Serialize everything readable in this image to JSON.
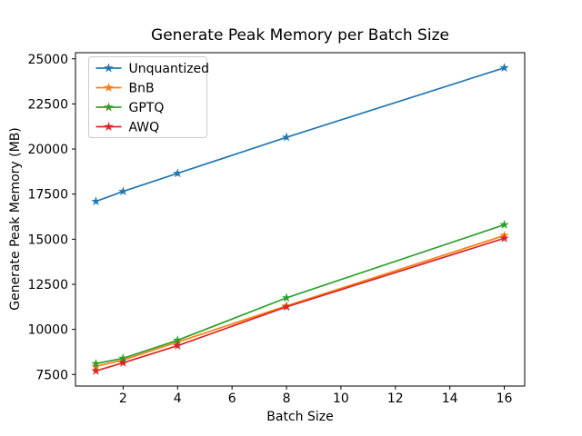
{
  "chart_data": {
    "type": "line",
    "title": "Generate Peak Memory per Batch Size",
    "xlabel": "Batch Size",
    "ylabel": "Generate Peak Memory (MB)",
    "x": [
      1,
      2,
      4,
      8,
      16
    ],
    "series": [
      {
        "name": "Unquantized",
        "color": "#1f77b4",
        "values": [
          17100,
          17650,
          18650,
          20650,
          24500
        ]
      },
      {
        "name": "BnB",
        "color": "#ff7f0e",
        "values": [
          7950,
          8300,
          9300,
          11300,
          15200
        ]
      },
      {
        "name": "GPTQ",
        "color": "#2ca02c",
        "values": [
          8100,
          8400,
          9400,
          11750,
          15800
        ]
      },
      {
        "name": "AWQ",
        "color": "#d62728",
        "values": [
          7700,
          8150,
          9100,
          11250,
          15050
        ]
      }
    ],
    "marker": "star",
    "xticks": [
      2,
      4,
      6,
      8,
      10,
      12,
      14,
      16
    ],
    "yticks": [
      7500,
      10000,
      12500,
      15000,
      17500,
      20000,
      22500,
      25000
    ],
    "xlim": [
      0.25,
      16.75
    ],
    "ylim": [
      6860,
      25340
    ],
    "legend_position": "upper-left",
    "grid": false,
    "axis_color": "#000000",
    "legend_border_color": "#cccccc",
    "background": "#ffffff"
  }
}
